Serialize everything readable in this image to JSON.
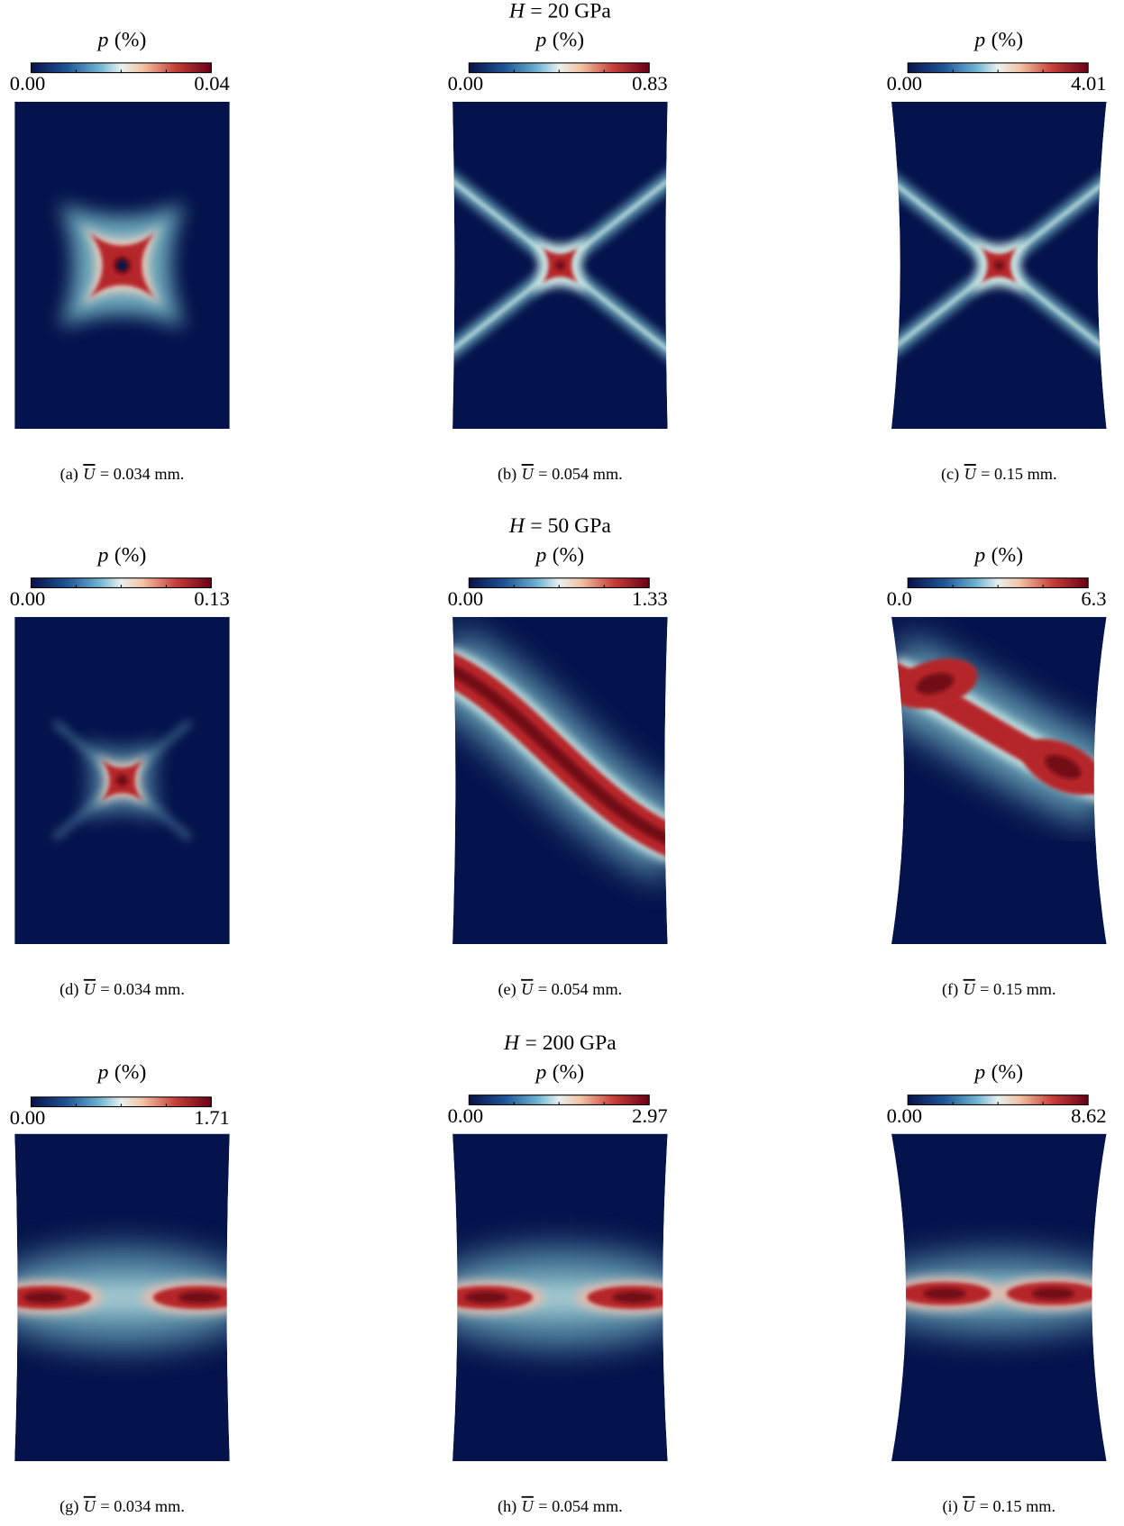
{
  "rows": [
    {
      "heading": {
        "symbol": "H",
        "text": "= 20 GPa"
      },
      "panels": [
        {
          "colorbar": {
            "symbol": "p",
            "unit": "(%)",
            "min": "0.00",
            "max": "0.04"
          },
          "caption": {
            "label": "(a)",
            "symbol": "U",
            "text": "= 0.034 mm."
          }
        },
        {
          "colorbar": {
            "symbol": "p",
            "unit": "(%)",
            "min": "0.00",
            "max": "0.83"
          },
          "caption": {
            "label": "(b)",
            "symbol": "U",
            "text": "= 0.054 mm."
          }
        },
        {
          "colorbar": {
            "symbol": "p",
            "unit": "(%)",
            "min": "0.00",
            "max": "4.01"
          },
          "caption": {
            "label": "(c)",
            "symbol": "U",
            "text": "= 0.15 mm."
          }
        }
      ]
    },
    {
      "heading": {
        "symbol": "H",
        "text": "= 50 GPa"
      },
      "panels": [
        {
          "colorbar": {
            "symbol": "p",
            "unit": "(%)",
            "min": "0.00",
            "max": "0.13"
          },
          "caption": {
            "label": "(d)",
            "symbol": "U",
            "text": "= 0.034 mm."
          }
        },
        {
          "colorbar": {
            "symbol": "p",
            "unit": "(%)",
            "min": "0.00",
            "max": "1.33"
          },
          "caption": {
            "label": "(e)",
            "symbol": "U",
            "text": "= 0.054 mm."
          }
        },
        {
          "colorbar": {
            "symbol": "p",
            "unit": "(%)",
            "min": "0.0",
            "max": "6.3"
          },
          "caption": {
            "label": "(f)",
            "symbol": "U",
            "text": "= 0.15 mm."
          }
        }
      ]
    },
    {
      "heading": {
        "symbol": "H",
        "text": "= 200 GPa"
      },
      "panels": [
        {
          "colorbar": {
            "symbol": "p",
            "unit": "(%)",
            "min": "0.00",
            "max": "1.71"
          },
          "caption": {
            "label": "(g)",
            "symbol": "U",
            "text": "= 0.034 mm."
          }
        },
        {
          "colorbar": {
            "symbol": "p",
            "unit": "(%)",
            "min": "0.00",
            "max": "2.97"
          },
          "caption": {
            "label": "(h)",
            "symbol": "U",
            "text": "= 0.054 mm."
          }
        },
        {
          "colorbar": {
            "symbol": "p",
            "unit": "(%)",
            "min": "0.00",
            "max": "8.62"
          },
          "caption": {
            "label": "(i)",
            "symbol": "U",
            "text": "= 0.15 mm."
          }
        }
      ]
    }
  ]
}
